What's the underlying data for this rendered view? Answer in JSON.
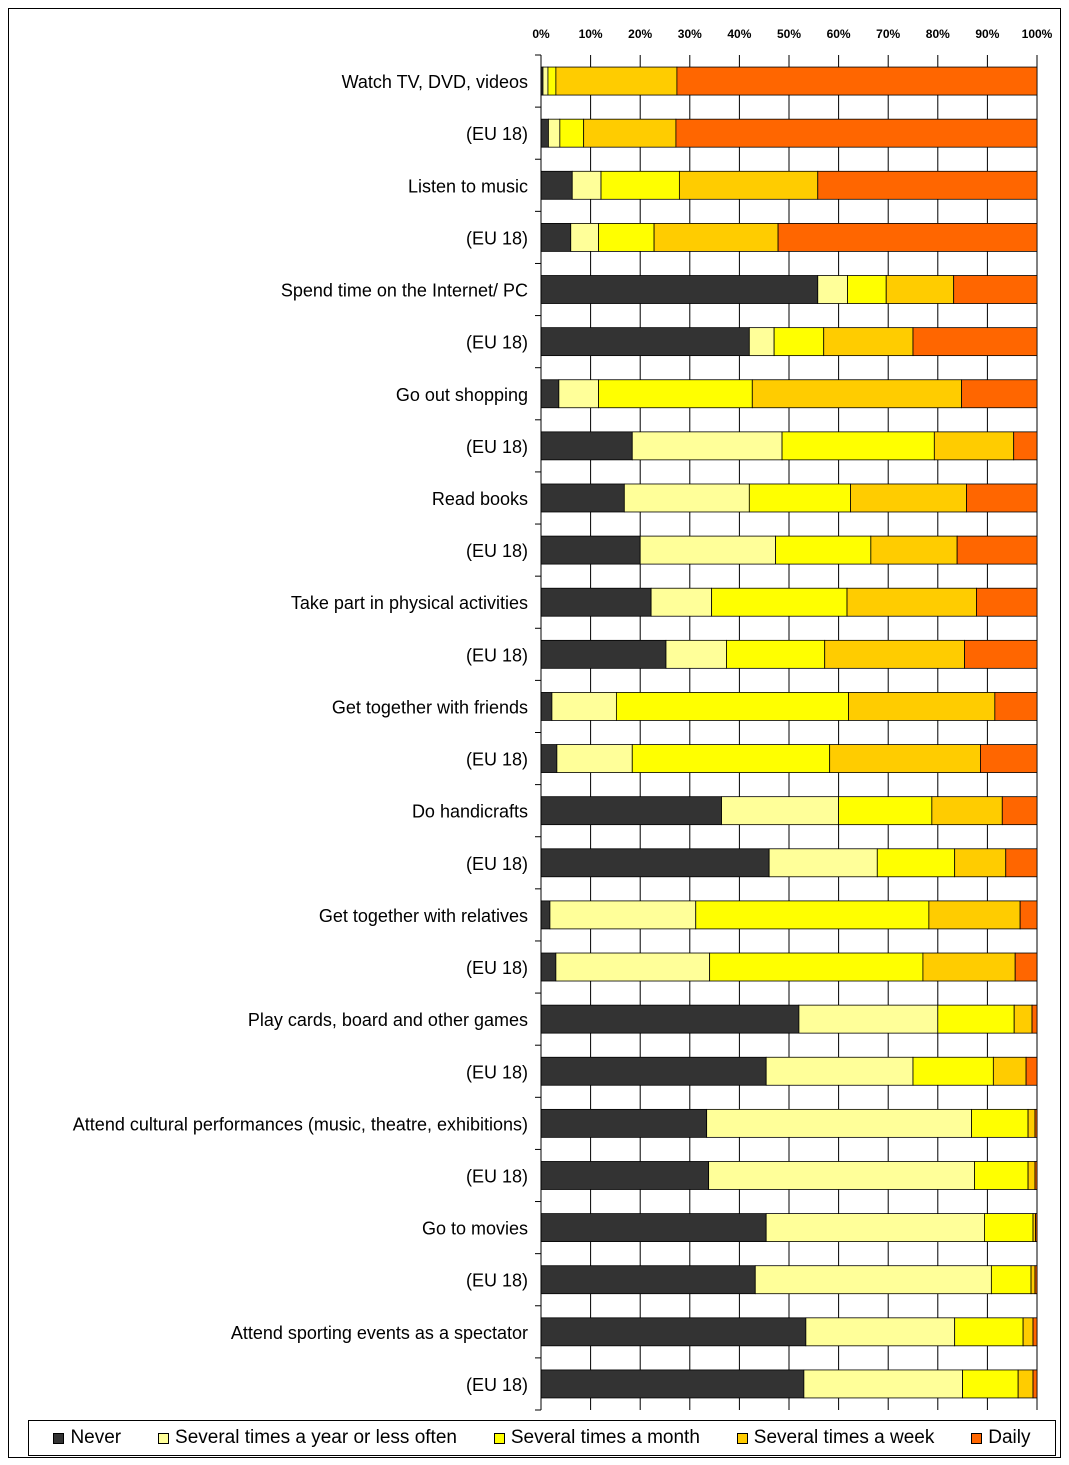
{
  "chart_data": {
    "type": "bar",
    "orientation": "horizontal",
    "stacked": "percent",
    "xlim": [
      0,
      100
    ],
    "x_ticks": [
      "0%",
      "10%",
      "20%",
      "30%",
      "40%",
      "50%",
      "60%",
      "70%",
      "80%",
      "90%",
      "100%"
    ],
    "grid": true,
    "legend_position": "bottom",
    "categories": [
      "Watch TV, DVD, videos",
      "(EU 18)",
      "Listen to music",
      "(EU 18)",
      "Spend time on the Internet/ PC",
      "(EU 18)",
      "Go out shopping",
      "(EU 18)",
      "Read books",
      "(EU 18)",
      "Take part in physical activities",
      "(EU 18)",
      "Get together with friends",
      "(EU 18)",
      "Do handicrafts",
      "(EU 18)",
      "Get together with relatives",
      "(EU 18)",
      "Play cards, board and other games",
      "(EU 18)",
      "Attend cultural performances (music, theatre, exhibitions)",
      "(EU 18)",
      "Go to movies",
      "(EU 18)",
      "Attend sporting events as a spectator",
      "(EU 18)"
    ],
    "series": [
      {
        "name": "Never",
        "color": "#333333",
        "values": [
          0.4,
          1.5,
          6.3,
          6.0,
          55.8,
          42.0,
          3.6,
          18.4,
          16.8,
          20.0,
          22.2,
          25.2,
          2.2,
          3.2,
          36.4,
          46.0,
          1.8,
          3.0,
          52.0,
          45.4,
          33.4,
          33.8,
          45.4,
          43.2,
          53.4,
          53.0
        ]
      },
      {
        "name": "Several times a year or less often",
        "color": "#FFFF99",
        "values": [
          1.0,
          2.3,
          5.8,
          5.6,
          6.0,
          5.0,
          8.0,
          30.2,
          25.2,
          27.3,
          12.2,
          12.2,
          13.0,
          15.2,
          23.6,
          21.8,
          29.4,
          31.0,
          28.0,
          29.6,
          53.4,
          53.6,
          44.0,
          47.6,
          30.0,
          32.0
        ]
      },
      {
        "name": "Several times a month",
        "color": "#FFFF00",
        "values": [
          1.6,
          4.8,
          15.8,
          11.2,
          7.8,
          10.0,
          31.0,
          30.7,
          20.4,
          19.2,
          27.3,
          19.8,
          46.8,
          39.8,
          18.8,
          15.6,
          47.0,
          43.0,
          15.4,
          16.2,
          11.4,
          10.8,
          9.8,
          8.0,
          13.8,
          11.2
        ]
      },
      {
        "name": "Several times a week",
        "color": "#FFCC00",
        "values": [
          24.4,
          18.6,
          27.9,
          25.0,
          13.6,
          18.0,
          42.2,
          16.0,
          23.4,
          17.4,
          26.1,
          28.2,
          29.5,
          30.4,
          14.2,
          10.3,
          18.4,
          18.6,
          3.6,
          6.6,
          1.4,
          1.4,
          0.5,
          0.8,
          2.0,
          3.0
        ]
      },
      {
        "name": "Daily",
        "color": "#FF6600",
        "values": [
          72.6,
          72.8,
          44.2,
          52.2,
          16.8,
          25.0,
          15.2,
          4.7,
          14.2,
          16.1,
          12.2,
          14.6,
          8.5,
          11.4,
          7.0,
          6.3,
          3.4,
          4.4,
          1.0,
          2.2,
          0.4,
          0.4,
          0.3,
          0.4,
          0.8,
          0.8
        ]
      }
    ]
  }
}
